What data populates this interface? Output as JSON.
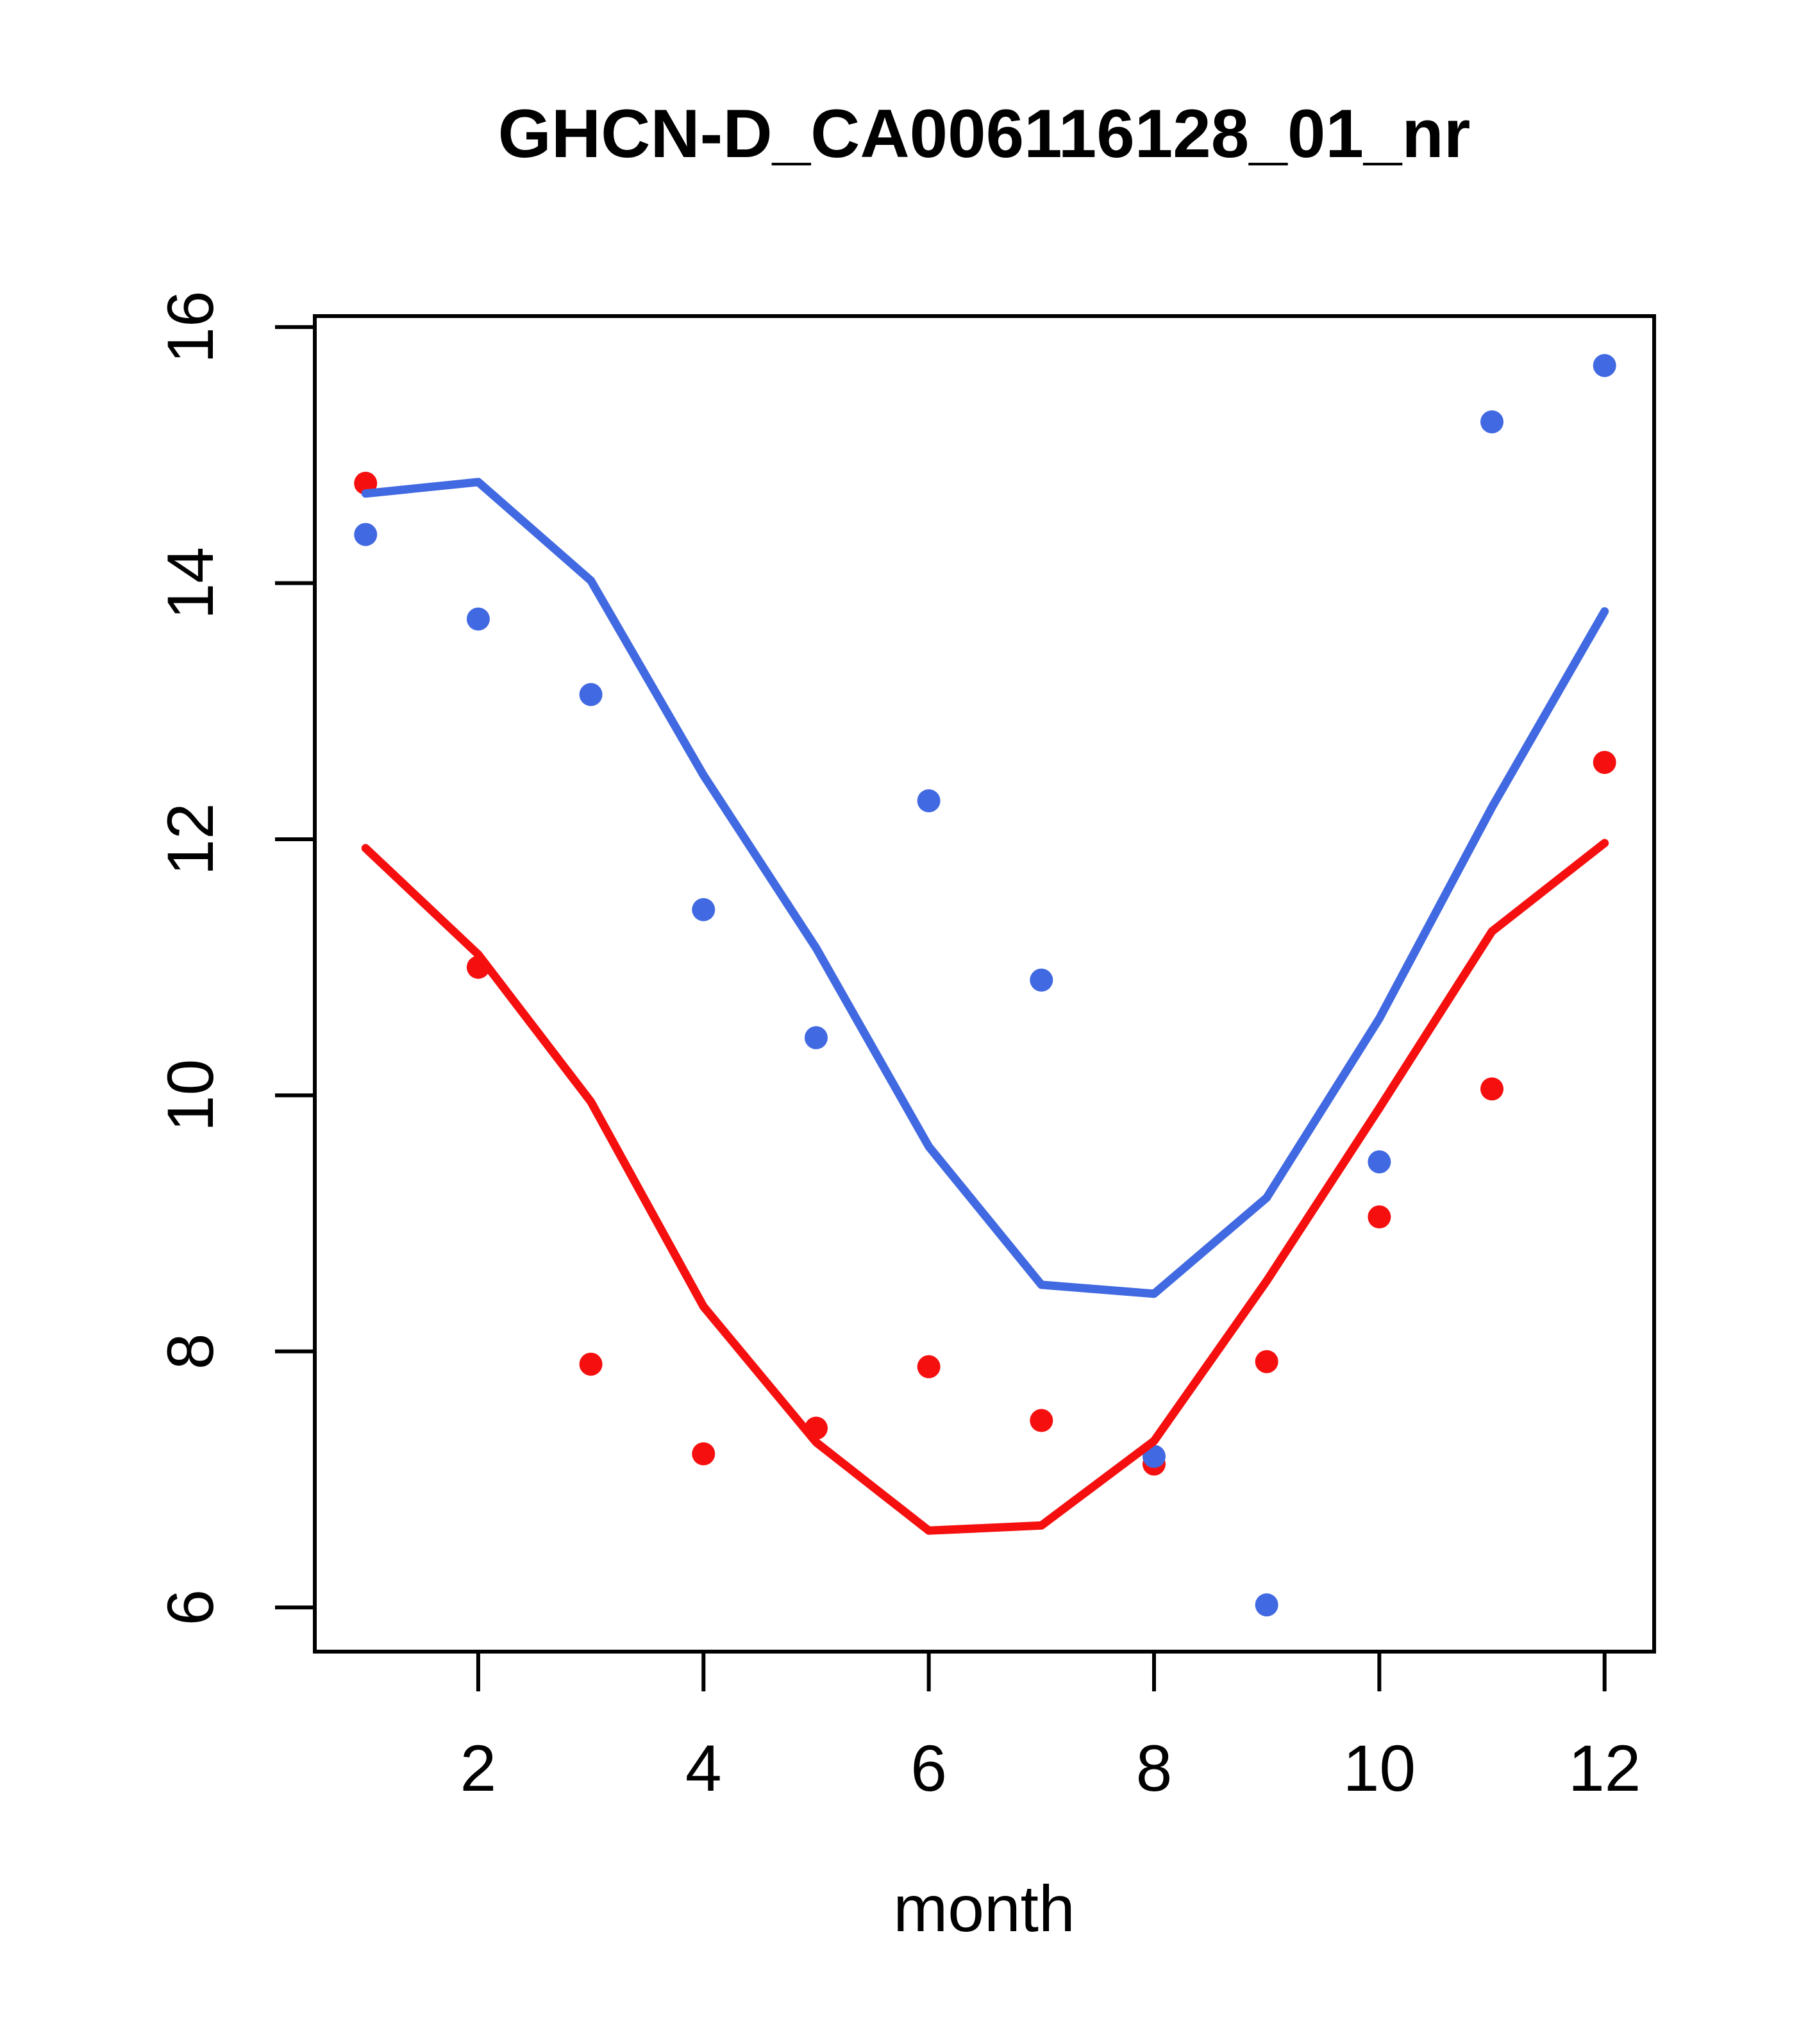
{
  "title": "GHCN-D_CA006116128_01_nr",
  "chart_data": {
    "type": "scatter",
    "title": "GHCN-D_CA006116128_01_nr",
    "xlabel": "month",
    "ylabel": "",
    "x": [
      1,
      2,
      3,
      4,
      5,
      6,
      7,
      8,
      9,
      10,
      11,
      12
    ],
    "series": [
      {
        "name": "blue_points",
        "kind": "points",
        "color": "#4169e1",
        "values": [
          14.38,
          13.72,
          13.13,
          11.45,
          10.45,
          12.3,
          10.9,
          7.18,
          6.02,
          9.48,
          15.26,
          15.7
        ]
      },
      {
        "name": "red_points",
        "kind": "points",
        "color": "#f50f0f",
        "values": [
          14.78,
          11.0,
          7.9,
          7.2,
          7.4,
          7.88,
          7.46,
          7.12,
          7.92,
          9.05,
          10.05,
          12.6
        ]
      },
      {
        "name": "red_trend_line",
        "kind": "line",
        "color": "#f50f0f",
        "values": [
          11.93,
          11.1,
          9.95,
          8.35,
          7.29,
          6.6,
          6.64,
          7.3,
          8.55,
          9.9,
          11.28,
          11.97
        ]
      },
      {
        "name": "blue_trend_line",
        "kind": "line",
        "color": "#4169e1",
        "values": [
          14.7,
          14.79,
          14.02,
          12.5,
          11.15,
          9.6,
          8.52,
          8.45,
          9.2,
          10.6,
          12.25,
          13.78
        ]
      }
    ],
    "xticks": [
      2,
      4,
      6,
      8,
      10,
      12
    ],
    "yticks": [
      6,
      8,
      10,
      12,
      14,
      16
    ],
    "xlim": [
      0.549,
      12.44
    ],
    "ylim": [
      5.655,
      16.086
    ],
    "grid": false,
    "legend": "none",
    "point_radius": 18,
    "line_width": 13,
    "box_color": "#000000"
  },
  "layout_note": ""
}
